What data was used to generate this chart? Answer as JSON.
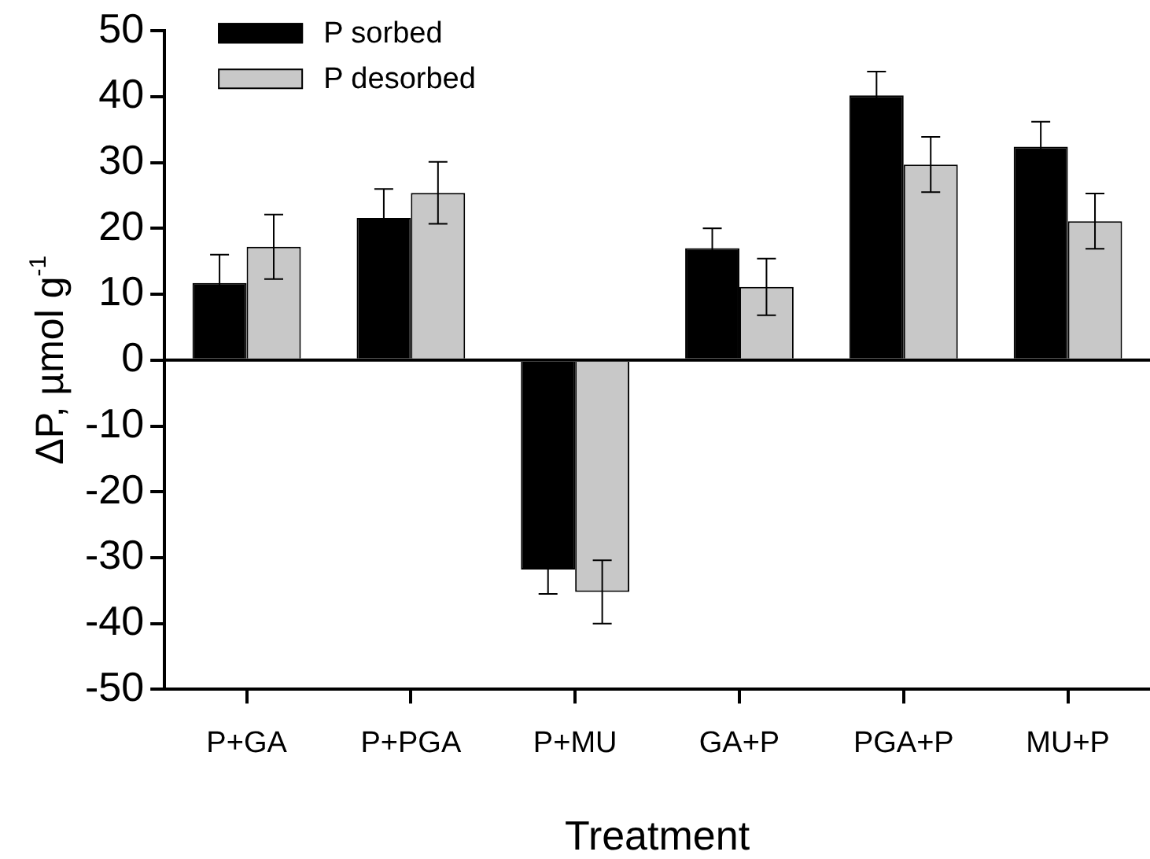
{
  "chart_data": {
    "type": "bar",
    "xlabel": "Treatment",
    "ylabel": "ΔP, µmol g$^{-1}$",
    "categories": [
      "P+GA",
      "P+PGA",
      "P+MU",
      "GA+P",
      "PGA+P",
      "MU+P"
    ],
    "series": [
      {
        "name": "P sorbed",
        "color": "#000000",
        "values": [
          11.7,
          21.6,
          -31.8,
          17.0,
          40.2,
          32.4
        ],
        "errors": [
          4.3,
          4.4,
          3.7,
          3.0,
          3.6,
          3.8
        ]
      },
      {
        "name": "P desorbed",
        "color": "#c8c8c8",
        "values": [
          17.2,
          25.4,
          -35.2,
          11.1,
          29.7,
          21.1
        ],
        "errors": [
          4.9,
          4.7,
          4.8,
          4.3,
          4.2,
          4.2
        ]
      }
    ],
    "ylim": [
      -50,
      50
    ],
    "yticks": [
      -50,
      -40,
      -30,
      -20,
      -10,
      0,
      10,
      20,
      30,
      40,
      50
    ],
    "ref_lines": [
      {
        "axis": "y",
        "value": 0,
        "color": "#000000"
      }
    ],
    "grid": false,
    "legend": "top left"
  }
}
